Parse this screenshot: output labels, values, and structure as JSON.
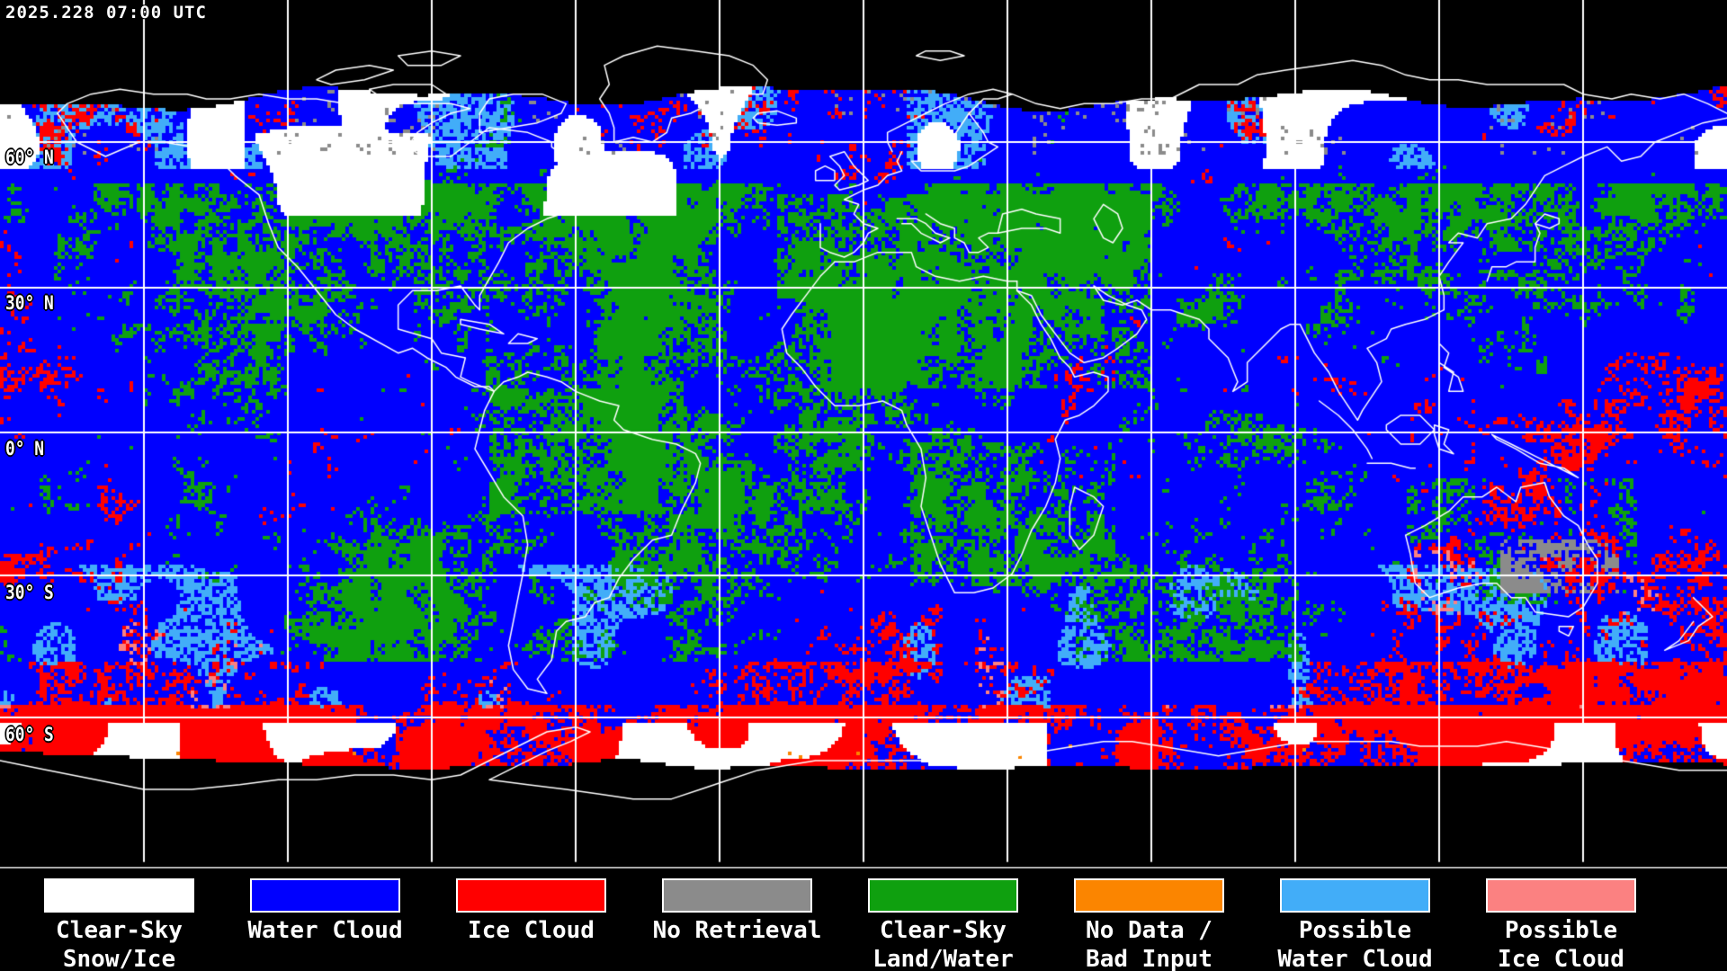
{
  "header": {
    "timestamp": "2025.228 07:00 UTC"
  },
  "map": {
    "background": "#000000",
    "grid_color": "#FFFFFF",
    "coastline_color": "#FFFFFF",
    "grid_spacing_deg": 30,
    "latitude_labels": [
      {
        "text": "60° N"
      },
      {
        "text": "30° N"
      },
      {
        "text": "0° N"
      },
      {
        "text": "30° S"
      },
      {
        "text": "60° S"
      }
    ]
  },
  "legend": {
    "items": [
      {
        "name": "clear-sky-snow-ice",
        "line1": "Clear-Sky",
        "line2": "Snow/Ice",
        "color": "#FFFFFF"
      },
      {
        "name": "water-cloud",
        "line1": "Water Cloud",
        "line2": "",
        "color": "#0000FF"
      },
      {
        "name": "ice-cloud",
        "line1": "Ice Cloud",
        "line2": "",
        "color": "#FF0000"
      },
      {
        "name": "no-retrieval",
        "line1": "No Retrieval",
        "line2": "",
        "color": "#8B8B8B"
      },
      {
        "name": "clear-sky-land-water",
        "line1": "Clear-Sky",
        "line2": "Land/Water",
        "color": "#0FA00F"
      },
      {
        "name": "no-data-bad-input",
        "line1": "No Data /",
        "line2": "Bad Input",
        "color": "#FB8500"
      },
      {
        "name": "possible-water-cloud",
        "line1": "Possible",
        "line2": "Water Cloud",
        "color": "#42ADF8"
      },
      {
        "name": "possible-ice-cloud",
        "line1": "Possible",
        "line2": "Ice Cloud",
        "color": "#FB8181"
      }
    ]
  }
}
